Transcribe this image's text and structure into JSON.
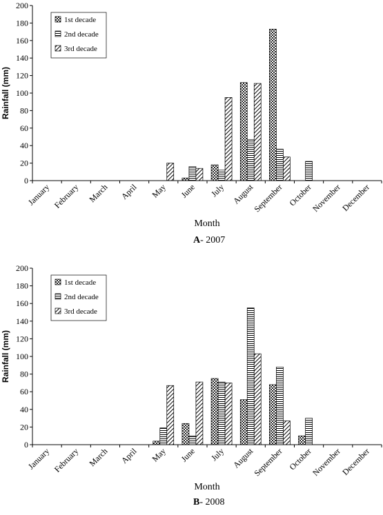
{
  "chart_data": [
    {
      "type": "bar",
      "caption_letter": "A",
      "caption_text": "- 2007",
      "xlabel": "Month",
      "ylabel": "Rainfall (mm)",
      "categories": [
        "January",
        "February",
        "March",
        "April",
        "May",
        "June",
        "July",
        "August",
        "September",
        "October",
        "November",
        "December"
      ],
      "series": [
        {
          "name": "1st decade",
          "pattern": "checker",
          "values": [
            0,
            0,
            0,
            0,
            0,
            3,
            18,
            112,
            173,
            0,
            0,
            0
          ]
        },
        {
          "name": "2nd decade",
          "pattern": "horizontal",
          "values": [
            0,
            0,
            0,
            0,
            0,
            16,
            12,
            47,
            36,
            22,
            0,
            0
          ]
        },
        {
          "name": "3rd decade",
          "pattern": "diagonal",
          "values": [
            0,
            0,
            0,
            0,
            20,
            14,
            95,
            111,
            27,
            0,
            0,
            0
          ]
        }
      ],
      "ylim": [
        0,
        200
      ],
      "yticks": [
        0,
        20,
        40,
        60,
        80,
        100,
        120,
        140,
        160,
        180,
        200
      ],
      "grid": false
    },
    {
      "type": "bar",
      "caption_letter": "B",
      "caption_text": "- 2008",
      "xlabel": "Month",
      "ylabel": "Rainfall (mm)",
      "categories": [
        "January",
        "February",
        "March",
        "April",
        "May",
        "June",
        "July",
        "August",
        "September",
        "October",
        "November",
        "December"
      ],
      "series": [
        {
          "name": "1st decade",
          "pattern": "checker",
          "values": [
            0,
            0,
            0,
            0,
            4,
            24,
            75,
            51,
            68,
            10,
            0,
            0
          ]
        },
        {
          "name": "2nd decade",
          "pattern": "horizontal",
          "values": [
            0,
            0,
            0,
            0,
            19,
            10,
            71,
            155,
            88,
            30,
            0,
            0
          ]
        },
        {
          "name": "3rd decade",
          "pattern": "diagonal",
          "values": [
            0,
            0,
            0,
            0,
            67,
            71,
            70,
            103,
            27,
            0,
            0,
            0
          ]
        }
      ],
      "ylim": [
        0,
        200
      ],
      "yticks": [
        0,
        20,
        40,
        60,
        80,
        100,
        120,
        140,
        160,
        180,
        200
      ],
      "grid": false
    }
  ]
}
